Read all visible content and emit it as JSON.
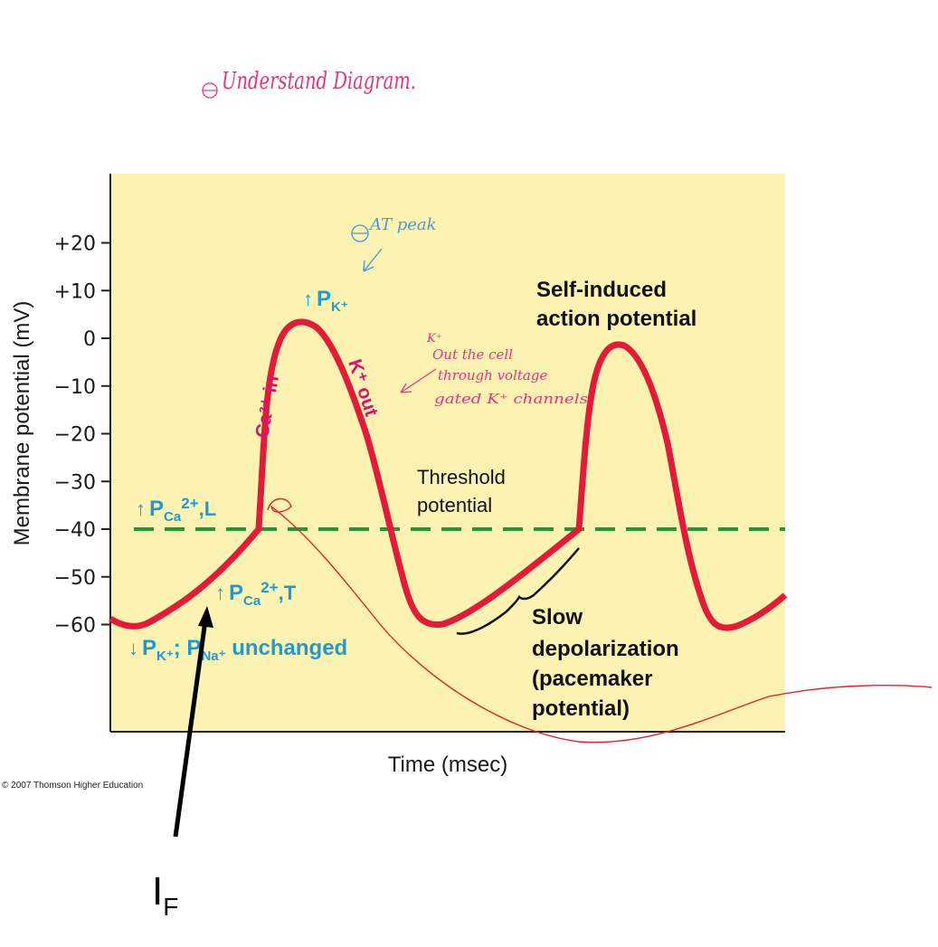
{
  "colors": {
    "plot_bg": "#fcf3b2",
    "curve": "#e41b38",
    "threshold": "#1f9a3a",
    "ion_blue": "#1e9ad6",
    "ion_magenta": "#d6166e",
    "handwriting_pink": "#e8337f",
    "handwriting_blue": "#4a9ad6",
    "handwriting_red": "#e8202a"
  },
  "y_axis": {
    "title": "Membrane potential (mV)",
    "ticks": [
      {
        "value": 20,
        "label": "+20"
      },
      {
        "value": 10,
        "label": "+10"
      },
      {
        "value": 0,
        "label": "0"
      },
      {
        "value": -10,
        "label": "−10"
      },
      {
        "value": -20,
        "label": "−20"
      },
      {
        "value": -30,
        "label": "−30"
      },
      {
        "value": -40,
        "label": "−40"
      },
      {
        "value": -50,
        "label": "−50"
      },
      {
        "value": -60,
        "label": "−60"
      }
    ]
  },
  "x_axis": {
    "title": "Time (msec)"
  },
  "labels": {
    "self_induced_1": "Self-induced",
    "self_induced_2": "action potential",
    "threshold_1": "Threshold",
    "threshold_2": "potential",
    "slow_1": "Slow",
    "slow_2": "depolarization",
    "slow_3": "(pacemaker",
    "slow_4": "potential)",
    "ca_in": "Ca²⁺ in",
    "k_out": "K⁺ out",
    "pk_up_arrow": "↑",
    "pk_up_p": "P",
    "pk_up_sub": "K⁺",
    "pca_l_arrow": "↑",
    "pca_l_p": "P",
    "pca_l_sub": "Ca",
    "pca_l_sup": "2+",
    "pca_l_tail": ",L",
    "pca_t_arrow": "↑",
    "pca_t_p": "P",
    "pca_t_sub": "Ca",
    "pca_t_sup": "2+",
    "pca_t_tail": ",T",
    "pk_down_arrow": "↓",
    "pk_down_p": "P",
    "pk_down_sub": "K⁺",
    "pk_down_mid": "; P",
    "pna_sub": "Na⁺",
    "unchanged": " unchanged",
    "copyright": "© 2007 Thomson Higher Education",
    "if_main": "I",
    "if_sub": "F"
  },
  "handwriting": {
    "title": "Understand Diagram.",
    "at_peak": "AT peak",
    "note_line1": "K⁺",
    "note_line2": "Out the cell",
    "note_line3": "through voltage",
    "note_line4": "gated K⁺ channels"
  }
}
